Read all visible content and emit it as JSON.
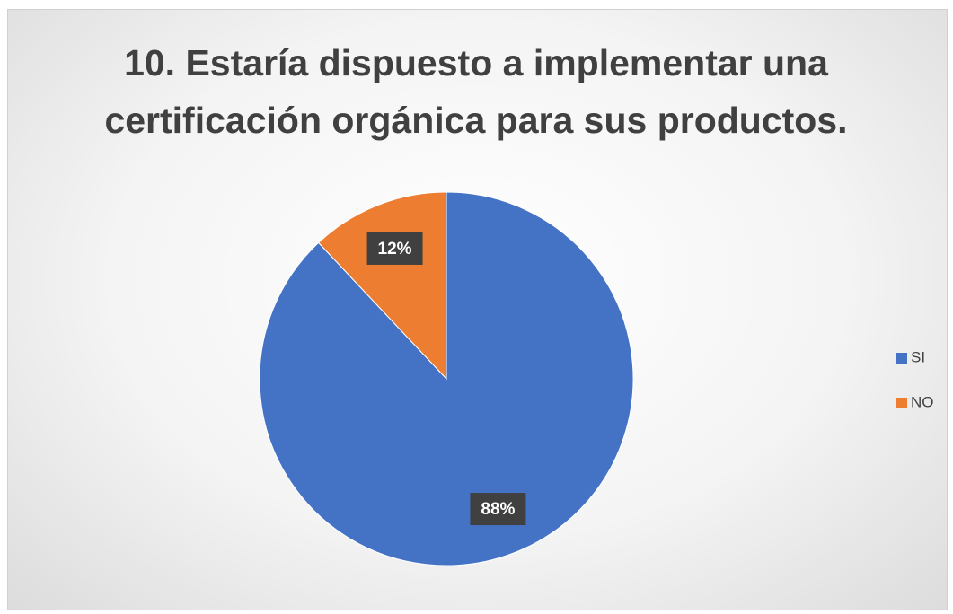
{
  "chart_data": {
    "type": "pie",
    "title": "10. Estaría dispuesto a implementar una certificación orgánica para sus productos.",
    "categories": [
      "SI",
      "NO"
    ],
    "values": [
      88,
      12
    ],
    "value_labels": [
      "88%",
      "12%"
    ],
    "colors": [
      "#4472c4",
      "#ed7d31"
    ],
    "legend": "right"
  }
}
